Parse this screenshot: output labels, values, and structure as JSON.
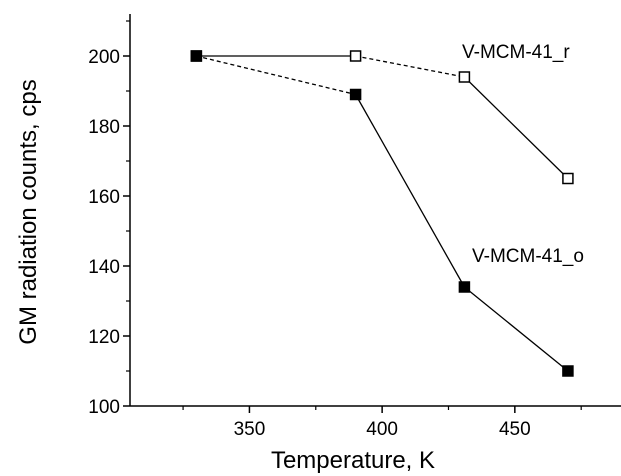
{
  "chart_data": {
    "type": "line",
    "title": "",
    "xlabel": "Temperature, K",
    "ylabel": "GM radiation counts, cps",
    "xlim": [
      305,
      490
    ],
    "ylim": [
      100,
      212
    ],
    "xticks": [
      350,
      400,
      450
    ],
    "yticks": [
      100,
      120,
      140,
      160,
      180,
      200
    ],
    "grid": false,
    "series": [
      {
        "name": "V-MCM-41_r",
        "marker": "open-square",
        "x": [
          330,
          390,
          431,
          470
        ],
        "y": [
          200,
          200,
          194,
          165
        ],
        "line_styles": [
          "solid",
          "dashed",
          "solid"
        ]
      },
      {
        "name": "V-MCM-41_o",
        "marker": "filled-square",
        "x": [
          330,
          390,
          431,
          470
        ],
        "y": [
          200,
          189,
          134,
          110
        ],
        "line_styles": [
          "dashed",
          "solid",
          "solid"
        ]
      }
    ]
  }
}
